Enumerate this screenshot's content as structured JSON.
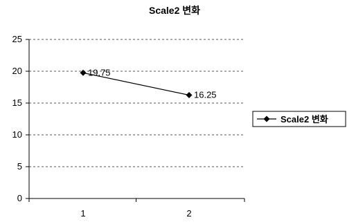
{
  "chart_data": {
    "type": "line",
    "title": "Scale2 변화",
    "xlabel": "",
    "ylabel": "",
    "categories": [
      "1",
      "2"
    ],
    "ylim": [
      0,
      25
    ],
    "yticks": [
      0,
      5,
      10,
      15,
      20,
      25
    ],
    "grid": "horizontal-dashed",
    "series": [
      {
        "name": "Scale2 변화",
        "values": [
          19.75,
          16.25
        ],
        "data_labels": [
          "19.75",
          "16.25"
        ],
        "marker": "diamond",
        "color": "#000000"
      }
    ],
    "legend": {
      "position": "right",
      "entries": [
        "Scale2 변화"
      ]
    }
  }
}
